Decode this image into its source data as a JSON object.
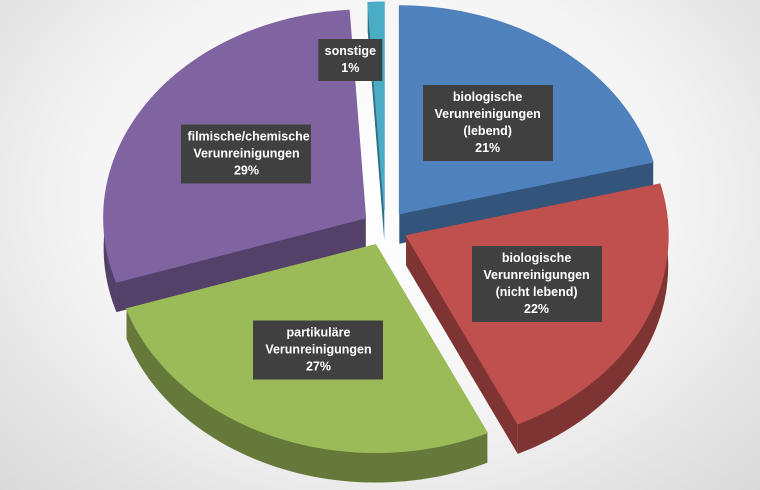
{
  "chart_data": {
    "type": "pie",
    "categories": [
      "biologische Verunreinigungen (lebend)",
      "biologische Verunreinigungen (nicht lebend)",
      "partikuläre Verunreinigungen",
      "filmische/chemische Verunreinigungen",
      "sonstige"
    ],
    "values": [
      21,
      22,
      27,
      29,
      1
    ],
    "value_labels": [
      "21%",
      "22%",
      "27%",
      "29%",
      "1%"
    ],
    "colors": [
      "#4f81bd",
      "#c0504d",
      "#9bbb59",
      "#8064a2",
      "#4bacc6"
    ]
  }
}
